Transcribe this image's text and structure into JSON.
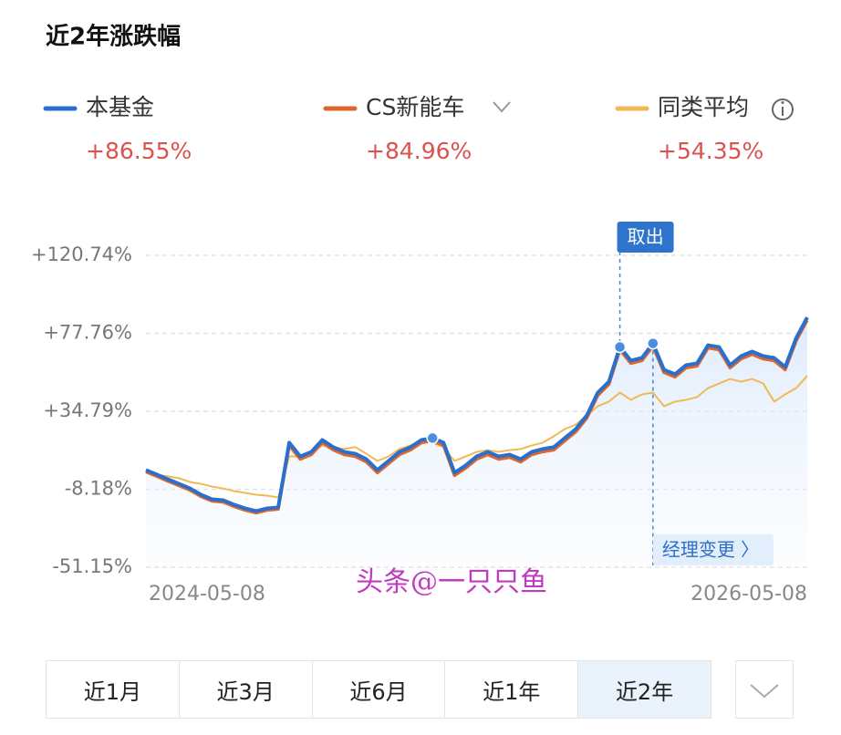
{
  "chart_data": {
    "type": "line",
    "title": "近2年涨跌幅",
    "categories": [
      "2024-05-08",
      null,
      null,
      null,
      null,
      null,
      null,
      null,
      null,
      null,
      null,
      null,
      null,
      null,
      null,
      null,
      null,
      null,
      null,
      null,
      null,
      null,
      null,
      null,
      null,
      null,
      null,
      null,
      null,
      null,
      null,
      null,
      null,
      null,
      null,
      null,
      null,
      null,
      null,
      null,
      null,
      null,
      null,
      null,
      null,
      null,
      null,
      null,
      null,
      null,
      null,
      null,
      null,
      null,
      null,
      null,
      null,
      null,
      null,
      null,
      "2026-05-08"
    ],
    "series": [
      {
        "name": "本基金",
        "color": "#2a6fc9",
        "value_label": "+86.55%",
        "values": [
          2.4,
          -0.1,
          -2.7,
          -5.2,
          -7.7,
          -11.2,
          -13.7,
          -14.2,
          -16.7,
          -18.7,
          -20.2,
          -18.7,
          -18.2,
          17.5,
          9.9,
          12.4,
          19.0,
          15.0,
          12.4,
          11.4,
          8.4,
          2.4,
          7.4,
          12.4,
          15.0,
          19.0,
          20.0,
          17.5,
          0.9,
          4.9,
          9.9,
          12.4,
          9.9,
          10.9,
          8.4,
          12.4,
          14.0,
          15.0,
          20.0,
          25.0,
          32.5,
          45.1,
          51.1,
          70.2,
          62.7,
          64.2,
          72.2,
          57.7,
          55.2,
          60.2,
          61.2,
          71.2,
          70.2,
          60.2,
          65.2,
          67.7,
          65.2,
          64.2,
          59.2,
          75.2,
          86.55
        ]
      },
      {
        "name": "CS新能车",
        "color": "#e0662f",
        "value_label": "+84.96%",
        "values": [
          1.4,
          -1.1,
          -3.7,
          -6.2,
          -8.7,
          -12.2,
          -14.7,
          -15.2,
          -17.7,
          -19.7,
          -21.2,
          -19.7,
          -19.2,
          16.0,
          8.4,
          10.9,
          17.5,
          13.5,
          10.9,
          9.9,
          6.9,
          0.9,
          5.9,
          10.9,
          13.5,
          17.5,
          18.5,
          16.0,
          -0.6,
          3.4,
          8.4,
          10.9,
          8.4,
          9.4,
          6.9,
          10.9,
          12.5,
          13.5,
          18.5,
          23.5,
          31.0,
          43.6,
          49.6,
          68.7,
          61.2,
          62.7,
          70.7,
          56.2,
          53.7,
          58.7,
          59.7,
          69.7,
          68.7,
          58.7,
          63.7,
          66.2,
          63.7,
          62.7,
          57.7,
          73.7,
          84.96
        ]
      },
      {
        "name": "同类平均",
        "color": "#f0b955",
        "value_label": "+54.35%",
        "values": [
          2.4,
          -0.1,
          -1.1,
          -2.1,
          -4.2,
          -5.2,
          -6.7,
          -7.7,
          -9.2,
          -10.2,
          -11.2,
          -11.7,
          -12.7,
          9.9,
          9.9,
          12.4,
          15.9,
          15.0,
          14.0,
          15.0,
          11.4,
          7.4,
          9.9,
          14.0,
          15.9,
          19.0,
          17.5,
          15.0,
          7.4,
          9.9,
          12.4,
          13.4,
          12.4,
          13.4,
          14.0,
          15.9,
          17.5,
          21.0,
          25.0,
          27.5,
          32.5,
          37.6,
          40.1,
          45.1,
          41.1,
          44.1,
          45.1,
          37.6,
          40.1,
          41.1,
          42.6,
          47.6,
          50.1,
          52.6,
          51.1,
          52.6,
          50.1,
          40.1,
          44.1,
          47.6,
          54.35
        ]
      }
    ],
    "ylim": [
      -51.15,
      120.74
    ],
    "yticks": [
      {
        "value": -51.15,
        "label": "-51.15%"
      },
      {
        "value": -8.18,
        "label": "-8.18%"
      },
      {
        "value": 34.79,
        "label": "+34.79%"
      },
      {
        "value": 77.76,
        "label": "+77.76%"
      },
      {
        "value": 120.74,
        "label": "+120.74%"
      }
    ],
    "grid": true,
    "annotations": [
      "取出",
      "经理变更 〉"
    ],
    "watermark": "头条@一只只鱼"
  },
  "range_buttons": [
    "近1月",
    "近3月",
    "近6月",
    "近1年",
    "近2年"
  ],
  "selected_button": 4
}
